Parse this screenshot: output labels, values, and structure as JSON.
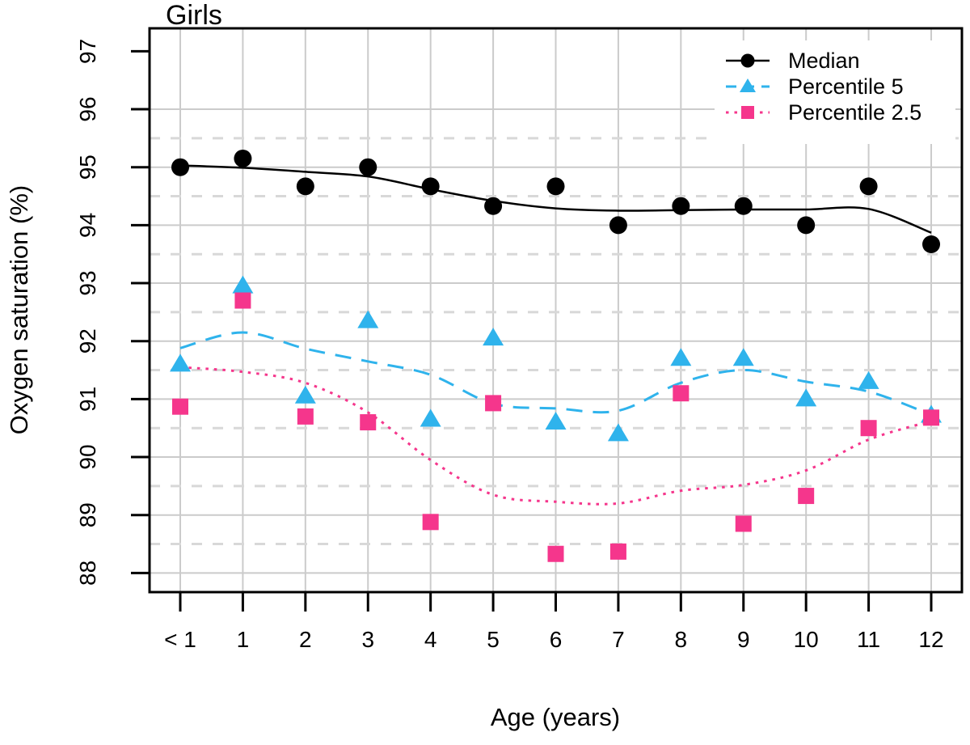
{
  "title": "Girls",
  "axes": {
    "x": {
      "label": "Age (years)",
      "tick_labels": [
        "< 1",
        "1",
        "2",
        "3",
        "4",
        "5",
        "6",
        "7",
        "8",
        "9",
        "10",
        "11",
        "12"
      ]
    },
    "y": {
      "label": "Oxygen saturation (%)",
      "tick_labels": [
        "88",
        "89",
        "90",
        "91",
        "92",
        "93",
        "94",
        "95",
        "96",
        "97"
      ]
    }
  },
  "legend": {
    "position": "top-right",
    "items": [
      "Median",
      "Percentile 5",
      "Percentile 2.5"
    ]
  },
  "colors": {
    "median": "#000000",
    "percentile5": "#2FB3EC",
    "percentile25": "#F5368C",
    "grid_solid": "#cbcbcb",
    "grid_dashed": "#d8d8d8"
  },
  "chart_data": {
    "type": "scatter",
    "title": "Girls",
    "xlabel": "Age (years)",
    "ylabel": "Oxygen saturation (%)",
    "categories": [
      "< 1",
      "1",
      "2",
      "3",
      "4",
      "5",
      "6",
      "7",
      "8",
      "9",
      "10",
      "11",
      "12"
    ],
    "ylim": [
      88,
      97
    ],
    "y_ticks": [
      88,
      89,
      90,
      91,
      92,
      93,
      94,
      95,
      96,
      97
    ],
    "grid": "vertical solid at each age; horizontal solid at integers 88-96; horizontal dashed at half values 88.5-95.5",
    "legend_position": "top-right",
    "series": [
      {
        "name": "Median",
        "marker": "circle",
        "color": "#000000",
        "line_style": "solid",
        "values": [
          95.0,
          95.15,
          94.67,
          95.0,
          94.67,
          94.33,
          94.67,
          94.0,
          94.33,
          94.33,
          94.0,
          94.67,
          93.67
        ],
        "smooth_line": [
          95.03,
          94.99,
          94.92,
          94.84,
          94.62,
          94.42,
          94.29,
          94.25,
          94.26,
          94.27,
          94.27,
          94.28,
          93.87
        ]
      },
      {
        "name": "Percentile 5",
        "marker": "triangle",
        "color": "#2FB3EC",
        "line_style": "dashed",
        "values": [
          91.6,
          92.95,
          91.05,
          92.35,
          90.65,
          92.05,
          90.6,
          90.4,
          91.7,
          91.7,
          91.0,
          91.3,
          90.72
        ],
        "smooth_line": [
          91.88,
          92.15,
          91.87,
          91.65,
          91.42,
          90.92,
          90.84,
          90.8,
          91.28,
          91.5,
          91.3,
          91.13,
          90.73
        ]
      },
      {
        "name": "Percentile 2.5",
        "marker": "square",
        "color": "#F5368C",
        "line_style": "dotted",
        "values": [
          90.87,
          92.7,
          90.7,
          90.6,
          88.88,
          90.93,
          88.33,
          88.37,
          91.1,
          88.85,
          89.33,
          90.5,
          90.68
        ],
        "smooth_line": [
          91.55,
          91.47,
          91.28,
          90.77,
          89.95,
          89.35,
          89.23,
          89.2,
          89.42,
          89.52,
          89.77,
          90.3,
          90.62
        ]
      }
    ]
  }
}
